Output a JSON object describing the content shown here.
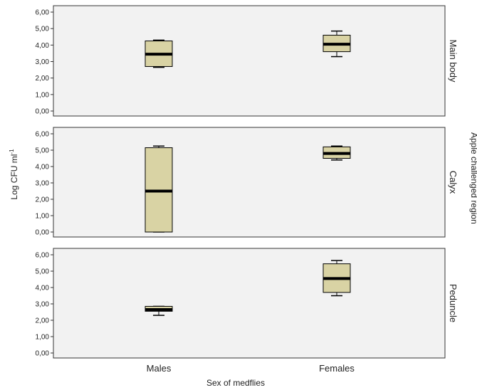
{
  "chart_data": {
    "type": "boxplot",
    "categories": [
      "Males",
      "Females"
    ],
    "xlabel": "Sex of medflies",
    "ylabel_main": "Log CFU ml",
    "ylabel_sup": "-1",
    "right_label": "Apple challenged region",
    "ylim": [
      0,
      6
    ],
    "yticks": [
      "0,00",
      "1,00",
      "2,00",
      "3,00",
      "4,00",
      "5,00",
      "6,00"
    ],
    "box_color": "#d9d3a4",
    "panel_bg": "#f2f2f2",
    "panels": [
      {
        "label": "Main body",
        "boxes": [
          {
            "category": "Males",
            "min": 2.65,
            "q1": 2.7,
            "median": 3.45,
            "q3": 4.25,
            "max": 4.3
          },
          {
            "category": "Females",
            "min": 3.3,
            "q1": 3.6,
            "median": 4.05,
            "q3": 4.6,
            "max": 4.85
          }
        ]
      },
      {
        "label": "Calyx",
        "boxes": [
          {
            "category": "Males",
            "min": 0.0,
            "q1": 0.0,
            "median": 2.5,
            "q3": 5.15,
            "max": 5.25
          },
          {
            "category": "Females",
            "min": 4.4,
            "q1": 4.5,
            "median": 4.8,
            "q3": 5.2,
            "max": 5.25
          }
        ]
      },
      {
        "label": "Peduncle",
        "boxes": [
          {
            "category": "Males",
            "min": 2.3,
            "q1": 2.55,
            "median": 2.65,
            "q3": 2.85,
            "max": 2.85
          },
          {
            "category": "Females",
            "min": 3.5,
            "q1": 3.7,
            "median": 4.55,
            "q3": 5.45,
            "max": 5.65
          }
        ]
      }
    ]
  }
}
